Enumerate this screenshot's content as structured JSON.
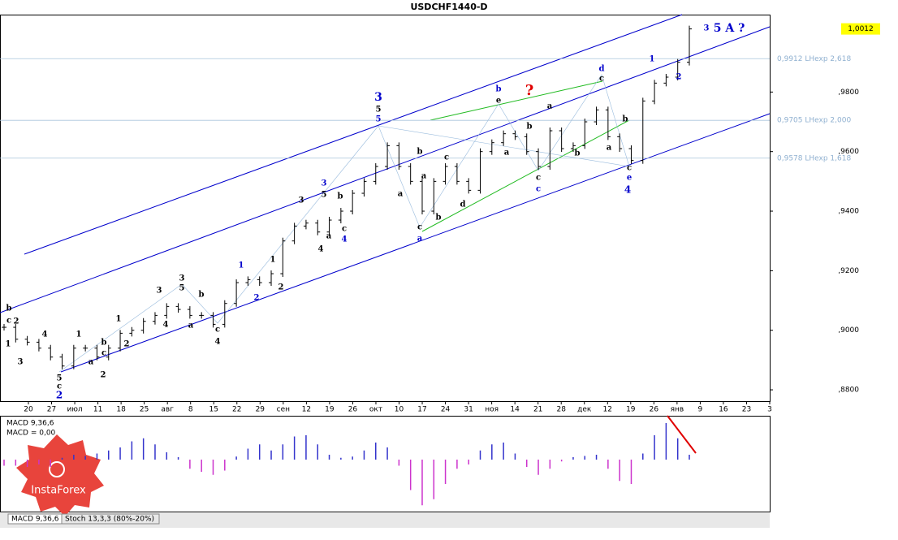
{
  "chart_data": {
    "type": "bar-ohlc",
    "title": "USDCHF1440-D",
    "close": [
      0.901,
      0.897,
      0.896,
      0.894,
      0.891,
      0.888,
      0.894,
      0.894,
      0.891,
      0.894,
      0.899,
      0.9,
      0.903,
      0.905,
      0.908,
      0.907,
      0.905,
      0.905,
      0.902,
      0.909,
      0.916,
      0.917,
      0.916,
      0.919,
      0.93,
      0.935,
      0.936,
      0.933,
      0.937,
      0.94,
      0.946,
      0.95,
      0.955,
      0.962,
      0.955,
      0.95,
      0.94,
      0.95,
      0.955,
      0.95,
      0.947,
      0.96,
      0.963,
      0.966,
      0.965,
      0.96,
      0.955,
      0.967,
      0.961,
      0.962,
      0.97,
      0.974,
      0.965,
      0.961,
      0.957,
      0.977,
      0.983,
      0.985,
      0.99,
      1.0012
    ],
    "color": "#000000",
    "ylim": [
      0.8762,
      1.006
    ],
    "yticks": [
      {
        "value": 0.98,
        "label": ",9800"
      },
      {
        "value": 0.96,
        "label": ",9600"
      },
      {
        "value": 0.94,
        "label": ",9400"
      },
      {
        "value": 0.92,
        "label": ",9200"
      },
      {
        "value": 0.9,
        "label": ",9000"
      },
      {
        "value": 0.88,
        "label": ",8800"
      }
    ],
    "last_price": {
      "value": 1.0012,
      "label": "1,0012"
    },
    "levels": [
      {
        "value": 0.9912,
        "label": "0,9912 LHexp 2,618"
      },
      {
        "value": 0.9705,
        "label": "0,9705 LHexp 2,000"
      },
      {
        "value": 0.9578,
        "label": "0,9578 LHexp 1,618"
      }
    ],
    "xlabels": [
      "20",
      "27",
      "июл",
      "11",
      "18",
      "25",
      "авг",
      "8",
      "15",
      "22",
      "29",
      "сен",
      "12",
      "19",
      "26",
      "окт",
      "10",
      "17",
      "24",
      "31",
      "ноя",
      "14",
      "21",
      "28",
      "дек",
      "12",
      "19",
      "26",
      "янв",
      "9",
      "16",
      "23",
      "3"
    ],
    "annotations": [
      {
        "text": "3",
        "color": "#0000cc"
      },
      {
        "text": "5",
        "color": "#000000"
      },
      {
        "text": "5",
        "color": "#0000cc"
      },
      {
        "text": "b",
        "color": "#0000cc"
      },
      {
        "text": "?",
        "color": "#e00000"
      },
      {
        "text": "e",
        "color": "#000000"
      },
      {
        "text": "d",
        "color": "#0000cc"
      },
      {
        "text": "c",
        "color": "#000000"
      },
      {
        "text": "3",
        "color": "#0000cc"
      },
      {
        "text": "5 A ?",
        "color": "#0000cc"
      },
      {
        "text": "1",
        "color": "#0000cc"
      },
      {
        "text": "2",
        "color": "#0000cc"
      },
      {
        "text": "4",
        "color": "#0000cc"
      },
      {
        "text": "e",
        "color": "#0000cc"
      },
      {
        "text": "c",
        "color": "#000000"
      },
      {
        "text": "c",
        "color": "#0000cc"
      },
      {
        "text": "c",
        "color": "#000000"
      },
      {
        "text": "a",
        "color": "#0000cc"
      },
      {
        "text": "c",
        "color": "#000000"
      },
      {
        "text": "b",
        "color": "#000000"
      },
      {
        "text": "a",
        "color": "#000000"
      },
      {
        "text": "d",
        "color": "#000000"
      },
      {
        "text": "b",
        "color": "#000000"
      },
      {
        "text": "c",
        "color": "#000000"
      },
      {
        "text": "a",
        "color": "#000000"
      },
      {
        "text": "a",
        "color": "#000000"
      },
      {
        "text": "b",
        "color": "#000000"
      },
      {
        "text": "a",
        "color": "#000000"
      },
      {
        "text": "b",
        "color": "#000000"
      },
      {
        "text": "a",
        "color": "#000000"
      },
      {
        "text": "b",
        "color": "#000000"
      },
      {
        "text": "3",
        "color": "#0000cc"
      },
      {
        "text": "5",
        "color": "#000000"
      },
      {
        "text": "b",
        "color": "#000000"
      },
      {
        "text": "a",
        "color": "#000000"
      },
      {
        "text": "c",
        "color": "#000000"
      },
      {
        "text": "4",
        "color": "#0000cc"
      },
      {
        "text": "4",
        "color": "#000000"
      },
      {
        "text": "3",
        "color": "#000000"
      },
      {
        "text": "1",
        "color": "#0000cc"
      },
      {
        "text": "2",
        "color": "#0000cc"
      },
      {
        "text": "1",
        "color": "#000000"
      },
      {
        "text": "2",
        "color": "#000000"
      },
      {
        "text": "3",
        "color": "#000000"
      },
      {
        "text": "5",
        "color": "#000000"
      },
      {
        "text": "3",
        "color": "#000000"
      },
      {
        "text": "b",
        "color": "#000000"
      },
      {
        "text": "4",
        "color": "#000000"
      },
      {
        "text": "a",
        "color": "#000000"
      },
      {
        "text": "c",
        "color": "#000000"
      },
      {
        "text": "4",
        "color": "#000000"
      },
      {
        "text": "1",
        "color": "#000000"
      },
      {
        "text": "2",
        "color": "#000000"
      },
      {
        "text": "b",
        "color": "#000000"
      },
      {
        "text": "c",
        "color": "#000000"
      },
      {
        "text": "a",
        "color": "#000000"
      },
      {
        "text": "1",
        "color": "#000000"
      },
      {
        "text": "2",
        "color": "#000000"
      },
      {
        "text": "4",
        "color": "#000000"
      },
      {
        "text": "3",
        "color": "#000000"
      },
      {
        "text": "5",
        "color": "#000000"
      },
      {
        "text": "c",
        "color": "#000000"
      },
      {
        "text": "2",
        "color": "#0000cc"
      },
      {
        "text": "b",
        "color": "#000000"
      },
      {
        "text": "c",
        "color": "#000000"
      },
      {
        "text": "2",
        "color": "#000000"
      },
      {
        "text": "1",
        "color": "#000000"
      }
    ],
    "macd": {
      "title": "MACD 9,36,6",
      "value_text": "MACD = 0,00",
      "positive_color": "#3333cc",
      "negative_color": "#cc33cc",
      "values": [
        -0.001,
        -0.001,
        -0.0012,
        -0.0008,
        -0.0012,
        0.0003,
        0.0008,
        0.0006,
        0.001,
        0.0015,
        0.002,
        0.003,
        0.0035,
        0.0025,
        0.0012,
        0.0004,
        -0.0015,
        -0.002,
        -0.0025,
        -0.0018,
        0.0005,
        0.0018,
        0.0025,
        0.0015,
        0.0025,
        0.0038,
        0.004,
        0.0025,
        0.0008,
        0.0003,
        0.0005,
        0.0015,
        0.0028,
        0.002,
        -0.001,
        -0.005,
        -0.0075,
        -0.0065,
        -0.004,
        -0.0015,
        -0.0008,
        0.0015,
        0.0025,
        0.0028,
        0.001,
        -0.0012,
        -0.0025,
        -0.0015,
        -0.0003,
        0.0004,
        0.0006,
        0.0008,
        -0.0015,
        -0.0035,
        -0.004,
        0.001,
        0.004,
        0.006,
        0.0035,
        0.0008
      ]
    },
    "tabs": [
      "MACD 9,36,6",
      "Stoch 13,3,3 (80%-20%)"
    ],
    "logo": "InstaForex"
  }
}
